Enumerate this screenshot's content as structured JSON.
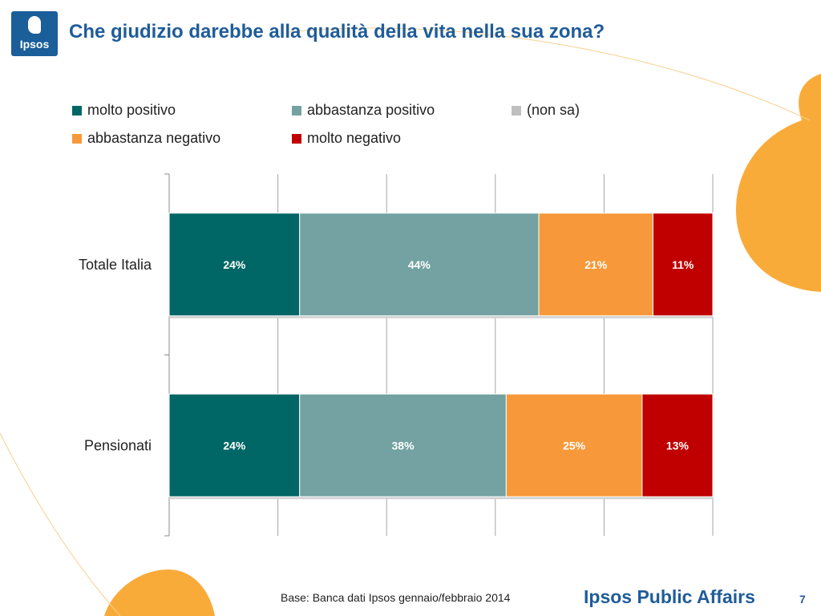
{
  "header": {
    "logo_text": "Ipsos",
    "title": "Che giudizio darebbe alla qualità della vita nella sua zona?"
  },
  "legend": [
    {
      "label": "molto positivo",
      "color": "#006666"
    },
    {
      "label": "abbastanza positivo",
      "color": "#74a2a2"
    },
    {
      "label": "(non sa)",
      "color": "#bfbfbf"
    },
    {
      "label": "abbastanza negativo",
      "color": "#f7993a"
    },
    {
      "label": "molto negativo",
      "color": "#c00000"
    }
  ],
  "chart_data": {
    "type": "bar",
    "orientation": "horizontal",
    "stacked": true,
    "categories": [
      "Totale Italia",
      "Pensionati"
    ],
    "series": [
      {
        "name": "molto positivo",
        "color": "#006666",
        "values": [
          24,
          24
        ],
        "labels": [
          "24%",
          "24%"
        ]
      },
      {
        "name": "abbastanza positivo",
        "color": "#74a2a2",
        "values": [
          44,
          38
        ],
        "labels": [
          "44%",
          "38%"
        ]
      },
      {
        "name": "(non sa)",
        "color": "#bfbfbf",
        "values": [
          0,
          0
        ],
        "labels": [
          "",
          ""
        ]
      },
      {
        "name": "abbastanza negativo",
        "color": "#f7993a",
        "values": [
          21,
          25
        ],
        "labels": [
          "21%",
          "25%"
        ]
      },
      {
        "name": "molto negativo",
        "color": "#c00000",
        "values": [
          11,
          13
        ],
        "labels": [
          "11%",
          "13%"
        ]
      }
    ],
    "xlim": [
      0,
      100
    ],
    "grid": true,
    "legend_position": "top"
  },
  "footer": {
    "base": "Base: Banca dati Ipsos gennaio/febbraio 2014",
    "brand": "Ipsos Public Affairs",
    "page": "7"
  }
}
